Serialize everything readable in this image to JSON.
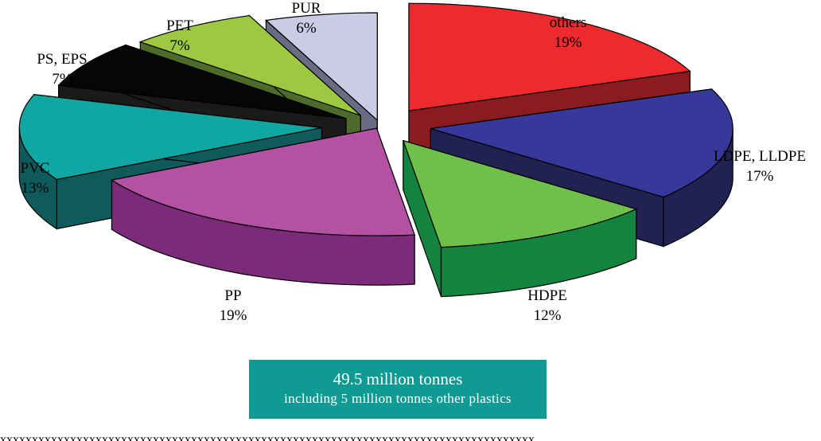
{
  "chart_data": {
    "type": "pie",
    "style": "3d-exploded",
    "slices": [
      {
        "label": "others",
        "pct_label": "19%",
        "value": 19,
        "colors": {
          "top": "#ee2a2e",
          "side": "#8b1b1e"
        }
      },
      {
        "label": "LDPE, LLDPE",
        "pct_label": "17%",
        "value": 17,
        "colors": {
          "top": "#37399a",
          "side": "#222252"
        }
      },
      {
        "label": "HDPE",
        "pct_label": "12%",
        "value": 12,
        "colors": {
          "top": "#6ec04b",
          "side": "#138340"
        }
      },
      {
        "label": "PP",
        "pct_label": "19%",
        "value": 19,
        "colors": {
          "top": "#b551a2",
          "side": "#7b2b79"
        }
      },
      {
        "label": "PVC",
        "pct_label": "13%",
        "value": 13,
        "colors": {
          "top": "#10a7a3",
          "side": "#0f5b5b"
        }
      },
      {
        "label": "PS, EPS",
        "pct_label": "7%",
        "value": 7,
        "colors": {
          "top": "#060606",
          "side": "#1a1a1a"
        }
      },
      {
        "label": "PET",
        "pct_label": "7%",
        "value": 7,
        "colors": {
          "top": "#9cc93f",
          "side": "#4d6b2b"
        }
      },
      {
        "label": "PUR",
        "pct_label": "6%",
        "value": 6,
        "colors": {
          "top": "#cbcbe5",
          "side": "#6c6b84"
        }
      }
    ]
  },
  "total_box": {
    "main": "49.5 million tonnes",
    "sub": "including 5 million tonnes other plastics",
    "color": "#0f9a94"
  }
}
